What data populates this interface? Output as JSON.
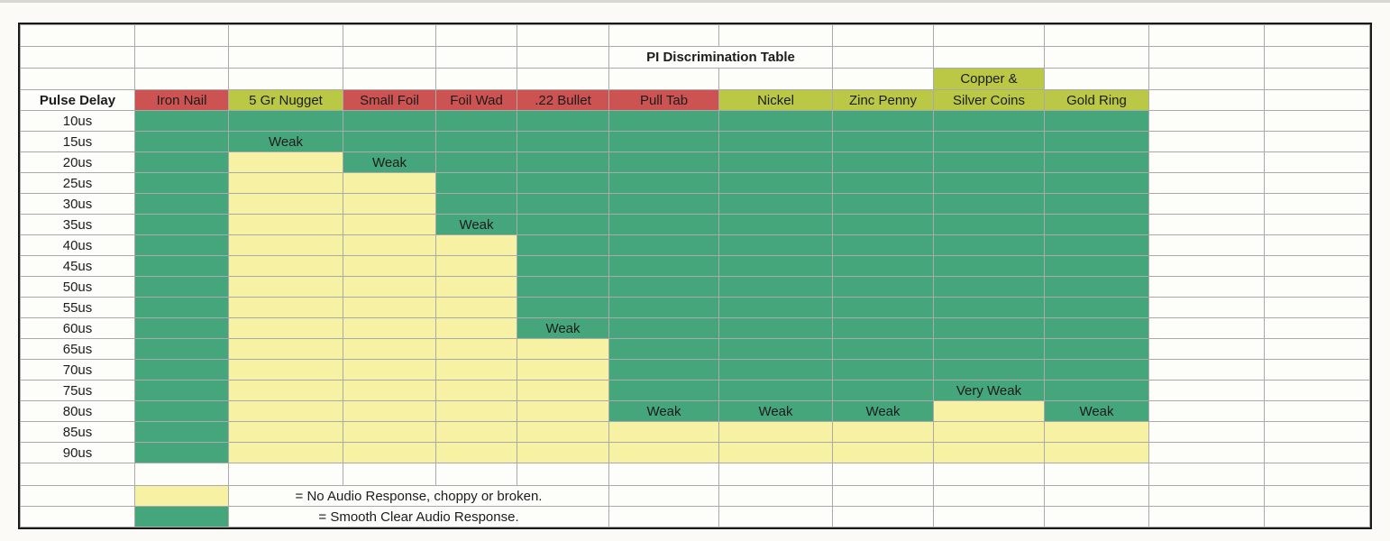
{
  "title": "PI Discrimination Table",
  "corner_header": "Pulse Delay",
  "columns": [
    {
      "label": "Iron Nail",
      "style": "red"
    },
    {
      "label": "5 Gr Nugget",
      "style": "olive"
    },
    {
      "label": "Small Foil",
      "style": "red"
    },
    {
      "label": "Foil Wad",
      "style": "red"
    },
    {
      "label": ".22 Bullet",
      "style": "red"
    },
    {
      "label": "Pull Tab",
      "style": "red"
    },
    {
      "label": "Nickel",
      "style": "olive"
    },
    {
      "label": "Zinc Penny",
      "style": "olive"
    },
    {
      "label": "Silver Coins",
      "style": "olive",
      "stacked_top_label": "Copper &"
    },
    {
      "label": "Gold Ring",
      "style": "olive"
    }
  ],
  "rows": [
    {
      "delay": "10us",
      "cells": [
        "green",
        "green",
        "green",
        "green",
        "green",
        "green",
        "green",
        "green",
        "green",
        "green"
      ]
    },
    {
      "delay": "15us",
      "cells": [
        "green",
        "green|Weak",
        "green",
        "green",
        "green",
        "green",
        "green",
        "green",
        "green",
        "green"
      ]
    },
    {
      "delay": "20us",
      "cells": [
        "green",
        "yellow",
        "green|Weak",
        "green",
        "green",
        "green",
        "green",
        "green",
        "green",
        "green"
      ]
    },
    {
      "delay": "25us",
      "cells": [
        "green",
        "yellow",
        "yellow",
        "green",
        "green",
        "green",
        "green",
        "green",
        "green",
        "green"
      ]
    },
    {
      "delay": "30us",
      "cells": [
        "green",
        "yellow",
        "yellow",
        "green",
        "green",
        "green",
        "green",
        "green",
        "green",
        "green"
      ]
    },
    {
      "delay": "35us",
      "cells": [
        "green",
        "yellow",
        "yellow",
        "green|Weak",
        "green",
        "green",
        "green",
        "green",
        "green",
        "green"
      ]
    },
    {
      "delay": "40us",
      "cells": [
        "green",
        "yellow",
        "yellow",
        "yellow",
        "green",
        "green",
        "green",
        "green",
        "green",
        "green"
      ]
    },
    {
      "delay": "45us",
      "cells": [
        "green",
        "yellow",
        "yellow",
        "yellow",
        "green",
        "green",
        "green",
        "green",
        "green",
        "green"
      ]
    },
    {
      "delay": "50us",
      "cells": [
        "green",
        "yellow",
        "yellow",
        "yellow",
        "green",
        "green",
        "green",
        "green",
        "green",
        "green"
      ]
    },
    {
      "delay": "55us",
      "cells": [
        "green",
        "yellow",
        "yellow",
        "yellow",
        "green",
        "green",
        "green",
        "green",
        "green",
        "green"
      ]
    },
    {
      "delay": "60us",
      "cells": [
        "green",
        "yellow",
        "yellow",
        "yellow",
        "green|Weak",
        "green",
        "green",
        "green",
        "green",
        "green"
      ]
    },
    {
      "delay": "65us",
      "cells": [
        "green",
        "yellow",
        "yellow",
        "yellow",
        "yellow",
        "green",
        "green",
        "green",
        "green",
        "green"
      ]
    },
    {
      "delay": "70us",
      "cells": [
        "green",
        "yellow",
        "yellow",
        "yellow",
        "yellow",
        "green",
        "green",
        "green",
        "green",
        "green"
      ]
    },
    {
      "delay": "75us",
      "cells": [
        "green",
        "yellow",
        "yellow",
        "yellow",
        "yellow",
        "green",
        "green",
        "green",
        "green|Very Weak",
        "green"
      ]
    },
    {
      "delay": "80us",
      "cells": [
        "green",
        "yellow",
        "yellow",
        "yellow",
        "yellow",
        "green|Weak",
        "green|Weak",
        "green|Weak",
        "yellow",
        "green|Weak"
      ]
    },
    {
      "delay": "85us",
      "cells": [
        "green",
        "yellow",
        "yellow",
        "yellow",
        "yellow",
        "yellow",
        "yellow",
        "yellow",
        "yellow",
        "yellow"
      ]
    },
    {
      "delay": "90us",
      "cells": [
        "green",
        "yellow",
        "yellow",
        "yellow",
        "yellow",
        "yellow",
        "yellow",
        "yellow",
        "yellow",
        "yellow"
      ]
    }
  ],
  "legend": [
    {
      "swatch": "yellow",
      "label": "= No Audio Response, choppy or broken."
    },
    {
      "swatch": "green",
      "label": "= Smooth Clear Audio Response."
    }
  ],
  "cell_states": {
    "green": "Smooth Clear Audio Response",
    "yellow": "No Audio Response, choppy or broken"
  },
  "colors": {
    "green": "#45a67c",
    "yellow": "#f7f1a3",
    "red_header": "#cc5351",
    "olive_header": "#bac846"
  }
}
